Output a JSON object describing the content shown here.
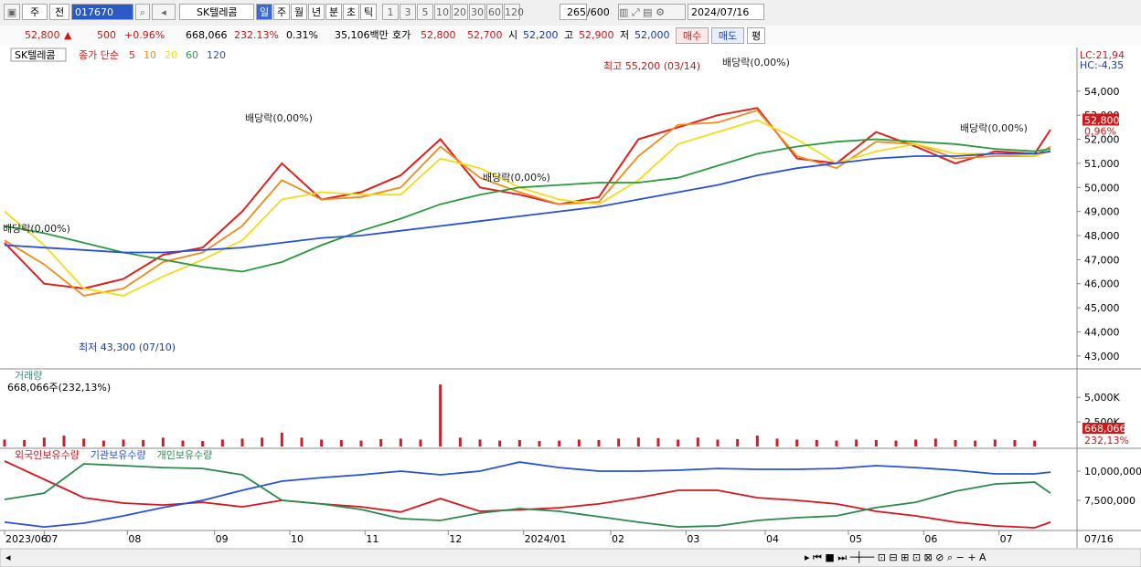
{
  "toolbar": {
    "market": "주",
    "prev": "전",
    "code": "017670",
    "name": "SK텔레콤",
    "periods": [
      "일",
      "주",
      "월",
      "년",
      "분",
      "초",
      "틱"
    ],
    "steps": [
      "1",
      "3",
      "5",
      "10",
      "20",
      "30",
      "60",
      "120"
    ],
    "count": "265",
    "max": "/600",
    "date": "2024/07/16"
  },
  "quote": {
    "price": "52,800",
    "change": "500",
    "rate": "+0.96%",
    "volume": "668,066",
    "volume_rate": "232.13%",
    "turnover": "0.31%",
    "amount": "35,106백만",
    "bid_label": "호가",
    "ask": "52,800",
    "bid": "52,700",
    "open_label": "시",
    "open": "52,200",
    "high_label": "고",
    "high": "52,900",
    "low_label": "저",
    "low": "52,000",
    "buy": "매수",
    "sell": "매도",
    "eval": "평"
  },
  "chart_data": [
    {
      "type": "line",
      "title": "SK텔레콤",
      "subtitle": "종가 단순",
      "xlim": [
        0,
        270
      ],
      "x": [
        0,
        10,
        20,
        30,
        40,
        50,
        60,
        70,
        80,
        90,
        100,
        110,
        120,
        130,
        140,
        150,
        160,
        170,
        180,
        190,
        200,
        210,
        220,
        230,
        240,
        250,
        260,
        264
      ],
      "series": [
        {
          "name": "5",
          "color": "#e0201c",
          "values": [
            47700,
            46000,
            45800,
            46200,
            47200,
            47500,
            49000,
            51000,
            49500,
            49800,
            50500,
            52000,
            50000,
            49700,
            49300,
            49600,
            52000,
            52500,
            53000,
            53300,
            51200,
            51000,
            52300,
            51700,
            51000,
            51500,
            51400,
            52400
          ]
        },
        {
          "name": "10",
          "color": "#f08a1c",
          "values": [
            47800,
            46800,
            45500,
            45800,
            46900,
            47300,
            48400,
            50300,
            49500,
            49600,
            50000,
            51700,
            50400,
            49800,
            49300,
            49400,
            51300,
            52600,
            52700,
            53200,
            51300,
            50800,
            51900,
            51800,
            51200,
            51300,
            51300,
            51700
          ]
        },
        {
          "name": "20",
          "color": "#f2dc18",
          "values": [
            49000,
            47600,
            45800,
            45500,
            46300,
            47000,
            47800,
            49500,
            49800,
            49700,
            49700,
            51200,
            50800,
            50000,
            49500,
            49300,
            50300,
            51800,
            52300,
            52800,
            52000,
            51000,
            51500,
            51800,
            51400,
            51400,
            51300,
            51500
          ]
        },
        {
          "name": "60",
          "color": "#2a9a3c",
          "values": [
            48400,
            48100,
            47700,
            47300,
            47000,
            46700,
            46500,
            46900,
            47600,
            48200,
            48700,
            49300,
            49700,
            50000,
            50100,
            50200,
            50200,
            50400,
            50900,
            51400,
            51700,
            51900,
            52000,
            51900,
            51800,
            51600,
            51500,
            51600
          ]
        },
        {
          "name": "120",
          "color": "#2850d8",
          "values": [
            47600,
            47500,
            47400,
            47300,
            47300,
            47400,
            47500,
            47700,
            47900,
            48000,
            48200,
            48400,
            48600,
            48800,
            49000,
            49200,
            49500,
            49800,
            50100,
            50500,
            50800,
            51000,
            51200,
            51300,
            51300,
            51400,
            51400,
            51500
          ]
        }
      ],
      "ylim": [
        42500,
        55700
      ],
      "yticks": [
        {
          "value": 43000,
          "label": "43,000"
        },
        {
          "value": 44000,
          "label": "44,000"
        },
        {
          "value": 45000,
          "label": "45,000"
        },
        {
          "value": 46000,
          "label": "46,000"
        },
        {
          "value": 47000,
          "label": "47,000"
        },
        {
          "value": 48000,
          "label": "48,000"
        },
        {
          "value": 49000,
          "label": "49,000"
        },
        {
          "value": 50000,
          "label": "50,000"
        },
        {
          "value": 51000,
          "label": "51,000"
        },
        {
          "value": 52000,
          "label": "52,000"
        },
        {
          "value": 53000,
          "label": "53,000"
        },
        {
          "value": 54000,
          "label": "54,000"
        }
      ],
      "annotations": [
        "최고 55,200 (03/14)",
        "최저 43,300 (07/10)",
        "배당락(0,00%)",
        "배당락(0,00%)",
        "배당락(0,00%)",
        "배당락(0,00%)",
        "배당락(0,00%)"
      ],
      "side_labels": [
        "LC:21,94",
        "HC:-4,35"
      ],
      "last_price": {
        "value": 52800,
        "label": "52,800"
      },
      "last_change": "0,96%"
    },
    {
      "type": "bar",
      "title": "거래량",
      "subtitle": "668,066주(232,13%)",
      "xlim": [
        0,
        270
      ],
      "color": "#c8202a",
      "x": [
        0,
        5,
        10,
        15,
        20,
        25,
        30,
        35,
        40,
        45,
        50,
        55,
        60,
        65,
        70,
        75,
        80,
        85,
        90,
        95,
        100,
        105,
        110,
        115,
        120,
        125,
        130,
        135,
        140,
        145,
        150,
        155,
        160,
        165,
        170,
        175,
        180,
        185,
        190,
        195,
        200,
        205,
        210,
        215,
        220,
        225,
        230,
        235,
        240,
        245,
        250,
        255,
        260
      ],
      "values": [
        700000,
        650000,
        900000,
        1100000,
        800000,
        600000,
        700000,
        650000,
        900000,
        600000,
        550000,
        700000,
        800000,
        900000,
        1400000,
        900000,
        700000,
        650000,
        600000,
        750000,
        800000,
        700000,
        6300000,
        900000,
        700000,
        600000,
        650000,
        550000,
        600000,
        700000,
        650000,
        800000,
        900000,
        850000,
        700000,
        900000,
        700000,
        750000,
        1100000,
        800000,
        700000,
        650000,
        600000,
        700000,
        650000,
        600000,
        700000,
        800000,
        650000,
        600000,
        700000,
        650000,
        600000
      ],
      "ylim": [
        0,
        7800000
      ],
      "yticks": [
        {
          "value": 2500000,
          "label": "2,500K"
        },
        {
          "value": 5000000,
          "label": "5,000K"
        }
      ],
      "last_labels": [
        "668,066",
        "232,13%"
      ]
    },
    {
      "type": "line",
      "xlim": [
        0,
        270
      ],
      "x": [
        0,
        10,
        20,
        30,
        40,
        50,
        60,
        70,
        80,
        90,
        100,
        110,
        120,
        130,
        140,
        150,
        160,
        170,
        180,
        190,
        200,
        210,
        220,
        230,
        240,
        250,
        260,
        264
      ],
      "series": [
        {
          "name": "외국인보유수량",
          "color": "#d8141c",
          "values": [
            10860000,
            9300000,
            7730000,
            7270000,
            7100000,
            7340000,
            6950000,
            7500000,
            7200000,
            6950000,
            6500000,
            7650000,
            6560000,
            6700000,
            6870000,
            7200000,
            7730000,
            8360000,
            8360000,
            7730000,
            7500000,
            7200000,
            6560000,
            6170000,
            5630000,
            5310000,
            5160000,
            5630000
          ]
        },
        {
          "name": "기관보유수량",
          "color": "#2850d8",
          "values": [
            5630000,
            5230000,
            5550000,
            6170000,
            6880000,
            7500000,
            8360000,
            9140000,
            9450000,
            9690000,
            10000000,
            9690000,
            10000000,
            10780000,
            10310000,
            10000000,
            10000000,
            10080000,
            10230000,
            10160000,
            10160000,
            10230000,
            10470000,
            10310000,
            10080000,
            9770000,
            9770000,
            9920000
          ]
        },
        {
          "name": "개인보유수량",
          "color": "#2a8a4c",
          "values": [
            7580000,
            8120000,
            10630000,
            10470000,
            10310000,
            10230000,
            9690000,
            7500000,
            7200000,
            6720000,
            5940000,
            5780000,
            6410000,
            6800000,
            6560000,
            6100000,
            5630000,
            5230000,
            5310000,
            5780000,
            6020000,
            6170000,
            6880000,
            7340000,
            8280000,
            8900000,
            9060000,
            8120000
          ]
        }
      ],
      "ylim": [
        5000000,
        11800000
      ],
      "yticks": [
        {
          "value": 7500000,
          "label": "7,500,000"
        },
        {
          "value": 10000000,
          "label": "10,000,000"
        }
      ],
      "xticks": [
        {
          "value": 0,
          "label": "2023/06"
        },
        {
          "value": 10,
          "label": "07"
        },
        {
          "value": 31,
          "label": "08"
        },
        {
          "value": 53,
          "label": "09"
        },
        {
          "value": 72,
          "label": "10"
        },
        {
          "value": 91,
          "label": "11"
        },
        {
          "value": 112,
          "label": "12"
        },
        {
          "value": 131,
          "label": "2024/01"
        },
        {
          "value": 153,
          "label": "02"
        },
        {
          "value": 172,
          "label": "03"
        },
        {
          "value": 192,
          "label": "04"
        },
        {
          "value": 213,
          "label": "05"
        },
        {
          "value": 232,
          "label": "06"
        },
        {
          "value": 251,
          "label": "07"
        }
      ],
      "last_x": "07/16"
    }
  ]
}
